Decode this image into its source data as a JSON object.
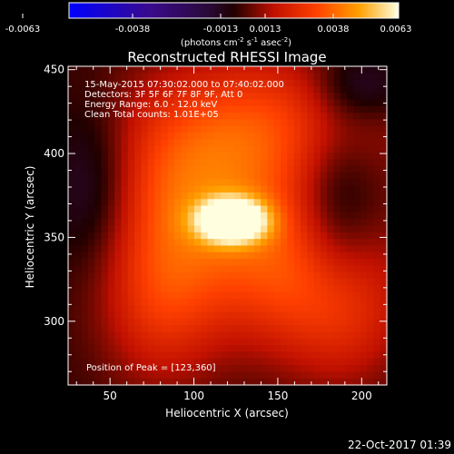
{
  "chart_data": {
    "type": "heatmap",
    "title": "Reconstructed RHESSI Image",
    "xlabel": "Heliocentric X (arcsec)",
    "ylabel": "Heliocentric Y (arcsec)",
    "xlim": [
      25,
      215
    ],
    "ylim": [
      262,
      452
    ],
    "xticks": [
      50,
      100,
      150,
      200
    ],
    "yticks": [
      300,
      350,
      400,
      450
    ],
    "colorbar": {
      "ticks": [
        "-0.0063",
        "-0.0038",
        "-0.0013",
        "0.0013",
        "0.0038",
        "0.0063"
      ],
      "units_prefix": "(photons cm",
      "units_exp1": "-2",
      "units_mid": " s",
      "units_exp2": "-1",
      "units_mid2": " asec",
      "units_exp3": "-2",
      "units_suffix": ")"
    },
    "annotations": [
      "15-May-2015 07:30:02.000 to 07:40:02.000",
      "Detectors: 3F 5F 6F 7F 8F 9F, Att 0",
      "Energy Range: 6.0 - 12.0 keV",
      "Clean    Total counts: 1.01E+05"
    ],
    "peak_label": "Position of Peak = [123,360]",
    "peak": [
      123,
      360
    ],
    "value_range": [
      -0.0063,
      0.0063
    ],
    "sources": [
      {
        "x": 123,
        "y": 360,
        "sx": 14,
        "sy": 9,
        "amp": 0.006
      },
      {
        "x": 95,
        "y": 378,
        "sx": 45,
        "sy": 40,
        "amp": 0.003
      },
      {
        "x": 160,
        "y": 330,
        "sx": 40,
        "sy": 35,
        "amp": 0.0026
      },
      {
        "x": 80,
        "y": 310,
        "sx": 25,
        "sy": 35,
        "amp": 0.002
      },
      {
        "x": 150,
        "y": 420,
        "sx": 50,
        "sy": 30,
        "amp": 0.0022
      },
      {
        "x": 190,
        "y": 300,
        "sx": 25,
        "sy": 30,
        "amp": 0.0014
      },
      {
        "x": 40,
        "y": 380,
        "sx": 20,
        "sy": 35,
        "amp": -0.002
      },
      {
        "x": 185,
        "y": 365,
        "sx": 18,
        "sy": 40,
        "amp": -0.0018
      },
      {
        "x": 200,
        "y": 440,
        "sx": 20,
        "sy": 15,
        "amp": -0.0015
      }
    ]
  },
  "footer": {
    "timestamp": "22-Oct-2017 01:39"
  }
}
